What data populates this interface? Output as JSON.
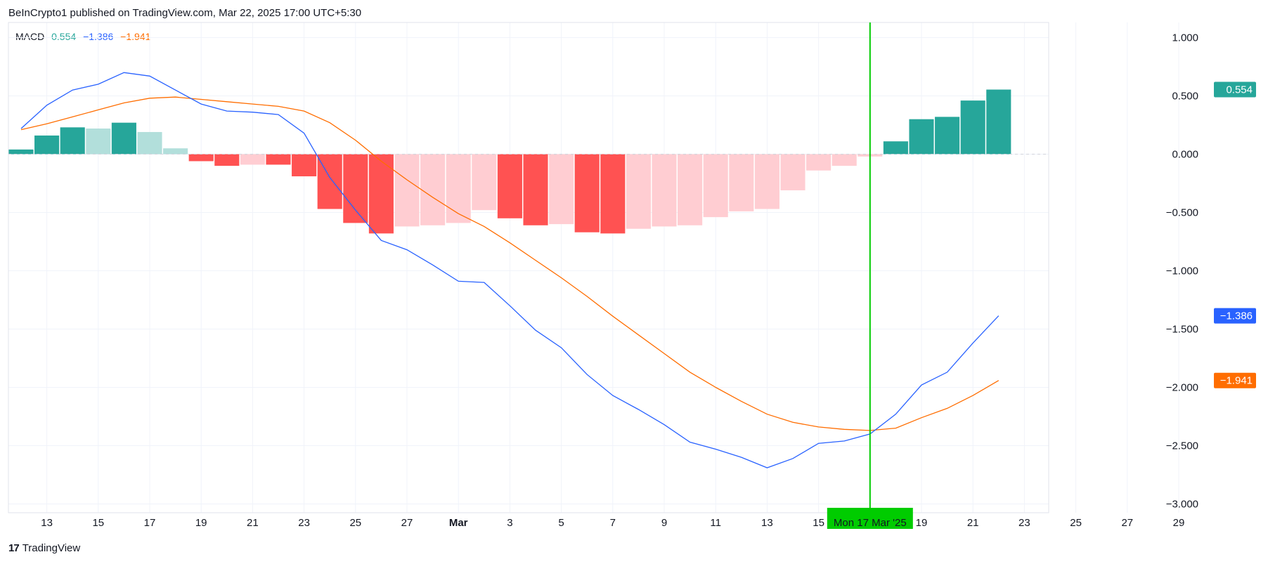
{
  "header": {
    "text": "BeInCrypto1 published on TradingView.com, Mar 22, 2025 17:00 UTC+5:30"
  },
  "brand": {
    "logo": "17",
    "name": "TradingView"
  },
  "colors": {
    "hist_up_strong": "#26a69a",
    "hist_up_weak": "#b2dfdb",
    "hist_down_strong": "#ff5252",
    "hist_down_weak": "#ffcdd2",
    "macd_line": "#2962ff",
    "signal_line": "#ff6d00",
    "cursor": "#00cc00",
    "grid": "#f0f3fa",
    "axis_text": "#131722"
  },
  "chart_data": {
    "type": "bar",
    "indicator": "MACD",
    "legend": {
      "label": "MACD",
      "hist": "0.554",
      "macd": "−1.386",
      "signal": "−1.941"
    },
    "ylim": [
      -3.0,
      1.15
    ],
    "y_ticks": [
      1.0,
      0.5,
      0.0,
      -0.5,
      -1.0,
      -1.5,
      -2.0,
      -2.5,
      -3.0
    ],
    "y_tick_labels": [
      "1.000",
      "0.500",
      "0.000",
      "−0.500",
      "−1.000",
      "−1.500",
      "−2.000",
      "−2.500",
      "−3.000"
    ],
    "x_ticks": [
      {
        "i": 1,
        "label": "13"
      },
      {
        "i": 3,
        "label": "15"
      },
      {
        "i": 5,
        "label": "17"
      },
      {
        "i": 7,
        "label": "19"
      },
      {
        "i": 9,
        "label": "21"
      },
      {
        "i": 11,
        "label": "23"
      },
      {
        "i": 13,
        "label": "25"
      },
      {
        "i": 15,
        "label": "27"
      },
      {
        "i": 17,
        "label": "Mar",
        "bold": true
      },
      {
        "i": 19,
        "label": "3"
      },
      {
        "i": 21,
        "label": "5"
      },
      {
        "i": 23,
        "label": "7"
      },
      {
        "i": 25,
        "label": "9"
      },
      {
        "i": 27,
        "label": "11"
      },
      {
        "i": 29,
        "label": "13"
      },
      {
        "i": 31,
        "label": "15"
      },
      {
        "i": 35,
        "label": "19"
      },
      {
        "i": 37,
        "label": "21"
      },
      {
        "i": 39,
        "label": "23"
      },
      {
        "i": 41,
        "label": "25"
      },
      {
        "i": 43,
        "label": "27"
      },
      {
        "i": 45,
        "label": "29"
      }
    ],
    "histogram": [
      0.04,
      0.16,
      0.23,
      0.22,
      0.27,
      0.19,
      0.05,
      -0.06,
      -0.1,
      -0.09,
      -0.09,
      -0.19,
      -0.47,
      -0.59,
      -0.68,
      -0.62,
      -0.61,
      -0.59,
      -0.48,
      -0.55,
      -0.61,
      -0.6,
      -0.67,
      -0.68,
      -0.64,
      -0.62,
      -0.61,
      -0.54,
      -0.49,
      -0.47,
      -0.31,
      -0.14,
      -0.1,
      -0.02,
      0.11,
      0.3,
      0.32,
      0.46,
      0.554
    ],
    "macd": [
      0.22,
      0.42,
      0.55,
      0.6,
      0.7,
      0.67,
      0.55,
      0.43,
      0.37,
      0.36,
      0.34,
      0.18,
      -0.2,
      -0.48,
      -0.74,
      -0.82,
      -0.95,
      -1.09,
      -1.1,
      -1.3,
      -1.51,
      -1.66,
      -1.89,
      -2.07,
      -2.19,
      -2.32,
      -2.47,
      -2.53,
      -2.6,
      -2.69,
      -2.61,
      -2.48,
      -2.46,
      -2.4,
      -2.23,
      -1.98,
      -1.87,
      -1.62,
      -1.386
    ],
    "signal": [
      0.21,
      0.26,
      0.32,
      0.38,
      0.44,
      0.48,
      0.49,
      0.47,
      0.45,
      0.43,
      0.41,
      0.37,
      0.27,
      0.12,
      -0.06,
      -0.22,
      -0.37,
      -0.51,
      -0.62,
      -0.76,
      -0.91,
      -1.06,
      -1.22,
      -1.39,
      -1.55,
      -1.71,
      -1.87,
      -2.0,
      -2.12,
      -2.23,
      -2.3,
      -2.34,
      -2.36,
      -2.37,
      -2.35,
      -2.26,
      -2.18,
      -2.07,
      -1.941
    ],
    "cursor": {
      "i": 33,
      "label": "Mon 17 Mar '25"
    },
    "price_labels": [
      {
        "value": 0.554,
        "text": "0.554",
        "color": "#26a69a"
      },
      {
        "value": -1.386,
        "text": "−1.386",
        "color": "#2962ff"
      },
      {
        "value": -1.941,
        "text": "−1.941",
        "color": "#ff6d00"
      }
    ]
  }
}
